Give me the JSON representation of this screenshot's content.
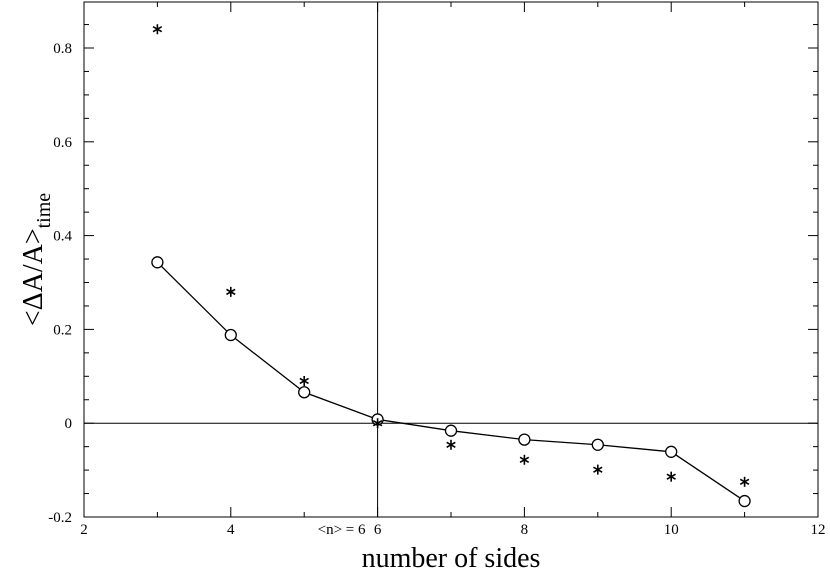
{
  "chart_data": {
    "type": "line",
    "xlabel": "number of sides",
    "ylabel": "<ΔA/A>",
    "ylabel_subscript": "time",
    "xlim": [
      2,
      12
    ],
    "ylim": [
      -0.2,
      0.9
    ],
    "x_ticks": [
      "2",
      "4",
      "6",
      "8",
      "10",
      "12"
    ],
    "y_ticks": [
      "-0.2",
      "0",
      "0.2",
      "0.4",
      "0.6",
      "0.8"
    ],
    "grid": false,
    "legend": "none",
    "reference_lines": {
      "horizontal_y": 0,
      "vertical_x": 6
    },
    "annotation": "<n> = 6",
    "series": [
      {
        "marker": "circle",
        "connected": true,
        "points": [
          {
            "x": 3,
            "y": 0.343
          },
          {
            "x": 4,
            "y": 0.188
          },
          {
            "x": 5,
            "y": 0.066
          },
          {
            "x": 6,
            "y": 0.008
          },
          {
            "x": 7,
            "y": -0.016
          },
          {
            "x": 8,
            "y": -0.035
          },
          {
            "x": 9,
            "y": -0.046
          },
          {
            "x": 10,
            "y": -0.061
          },
          {
            "x": 11,
            "y": -0.166
          }
        ]
      },
      {
        "marker": "asterisk",
        "connected": false,
        "points": [
          {
            "x": 3,
            "y": 0.84
          },
          {
            "x": 4,
            "y": 0.28
          },
          {
            "x": 5,
            "y": 0.09
          },
          {
            "x": 6,
            "y": 0.0
          },
          {
            "x": 7,
            "y": -0.046
          },
          {
            "x": 8,
            "y": -0.078
          },
          {
            "x": 9,
            "y": -0.099
          },
          {
            "x": 10,
            "y": -0.114
          },
          {
            "x": 11,
            "y": -0.125
          }
        ]
      }
    ]
  }
}
